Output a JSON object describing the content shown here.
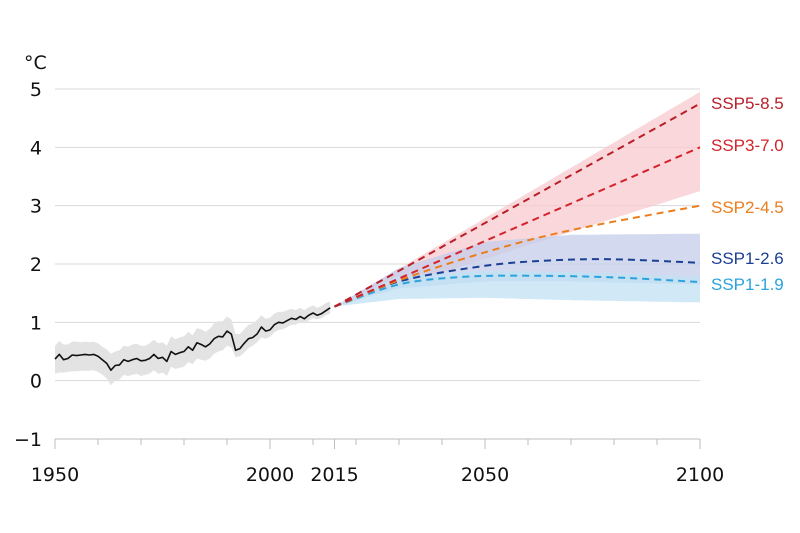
{
  "chart_data": {
    "type": "line",
    "title": "",
    "ylabel": "°C",
    "xlabel": "",
    "xlim": [
      1950,
      2100
    ],
    "ylim": [
      -1,
      5
    ],
    "grid": true,
    "x_ticks": [
      1950,
      2000,
      2015,
      2050,
      2100
    ],
    "x_tick_labels": [
      "1950",
      "2000",
      "2015",
      "2050",
      "2100"
    ],
    "y_ticks": [
      -1,
      0,
      1,
      2,
      3,
      4,
      5
    ],
    "y_tick_labels": [
      "−1",
      "0",
      "1",
      "2",
      "3",
      "4",
      "5"
    ],
    "historical": {
      "x": [
        1950,
        1951,
        1952,
        1953,
        1954,
        1955,
        1956,
        1957,
        1958,
        1959,
        1960,
        1961,
        1962,
        1963,
        1964,
        1965,
        1966,
        1967,
        1968,
        1969,
        1970,
        1971,
        1972,
        1973,
        1974,
        1975,
        1976,
        1977,
        1978,
        1979,
        1980,
        1981,
        1982,
        1983,
        1984,
        1985,
        1986,
        1987,
        1988,
        1989,
        1990,
        1991,
        1992,
        1993,
        1994,
        1995,
        1996,
        1997,
        1998,
        1999,
        2000,
        2001,
        2002,
        2003,
        2004,
        2005,
        2006,
        2007,
        2008,
        2009,
        2010,
        2011,
        2012,
        2013,
        2014
      ],
      "y": [
        0.37,
        0.45,
        0.36,
        0.38,
        0.44,
        0.43,
        0.44,
        0.45,
        0.44,
        0.45,
        0.42,
        0.36,
        0.3,
        0.18,
        0.26,
        0.27,
        0.36,
        0.33,
        0.36,
        0.38,
        0.34,
        0.35,
        0.38,
        0.45,
        0.38,
        0.4,
        0.33,
        0.5,
        0.45,
        0.48,
        0.5,
        0.58,
        0.52,
        0.65,
        0.62,
        0.58,
        0.63,
        0.72,
        0.76,
        0.75,
        0.85,
        0.8,
        0.52,
        0.55,
        0.64,
        0.72,
        0.74,
        0.8,
        0.92,
        0.85,
        0.87,
        0.96,
        1.0,
        0.99,
        1.03,
        1.07,
        1.05,
        1.1,
        1.06,
        1.12,
        1.16,
        1.12,
        1.15,
        1.2,
        1.25
      ],
      "lower": [
        0.12,
        0.14,
        0.14,
        0.15,
        0.16,
        0.16,
        0.17,
        0.17,
        0.17,
        0.18,
        0.15,
        0.1,
        0.04,
        -0.08,
        0.0,
        0.02,
        0.1,
        0.08,
        0.1,
        0.12,
        0.08,
        0.1,
        0.12,
        0.18,
        0.12,
        0.14,
        0.08,
        0.24,
        0.2,
        0.22,
        0.24,
        0.32,
        0.28,
        0.38,
        0.36,
        0.34,
        0.38,
        0.46,
        0.5,
        0.52,
        0.6,
        0.57,
        0.4,
        0.42,
        0.48,
        0.56,
        0.6,
        0.66,
        0.74,
        0.72,
        0.75,
        0.83,
        0.87,
        0.88,
        0.92,
        0.96,
        0.96,
        1.0,
        0.98,
        1.03,
        1.07,
        1.05,
        1.07,
        1.12,
        1.15
      ],
      "upper": [
        0.6,
        0.68,
        0.62,
        0.62,
        0.67,
        0.67,
        0.66,
        0.67,
        0.66,
        0.67,
        0.64,
        0.58,
        0.54,
        0.46,
        0.5,
        0.52,
        0.6,
        0.58,
        0.62,
        0.63,
        0.6,
        0.6,
        0.64,
        0.7,
        0.64,
        0.66,
        0.6,
        0.76,
        0.71,
        0.74,
        0.76,
        0.84,
        0.78,
        0.9,
        0.88,
        0.84,
        0.89,
        0.98,
        1.02,
        1.02,
        1.1,
        1.05,
        0.8,
        0.8,
        0.88,
        0.96,
        0.98,
        1.04,
        1.12,
        1.06,
        1.08,
        1.15,
        1.18,
        1.18,
        1.21,
        1.23,
        1.21,
        1.25,
        1.21,
        1.26,
        1.29,
        1.25,
        1.28,
        1.33,
        1.36
      ]
    },
    "scenario_start": {
      "x": 2015,
      "y": 1.27
    },
    "series": [
      {
        "name": "SSP5-8.5",
        "color": "#b81f28",
        "x": [
          2015,
          2100
        ],
        "y": [
          1.27,
          4.75
        ]
      },
      {
        "name": "SSP3-7.0",
        "color": "#d4232b",
        "x": [
          2015,
          2100
        ],
        "y": [
          1.27,
          4.0
        ]
      },
      {
        "name": "SSP2-4.5",
        "color": "#ec7d1c",
        "x": [
          2015,
          2030,
          2050,
          2070,
          2100
        ],
        "y": [
          1.27,
          1.72,
          2.2,
          2.58,
          3.0
        ]
      },
      {
        "name": "SSP1-2.6",
        "color": "#1b3f94",
        "x": [
          2015,
          2030,
          2050,
          2065,
          2080,
          2100
        ],
        "y": [
          1.27,
          1.7,
          1.97,
          2.06,
          2.08,
          2.02
        ]
      },
      {
        "name": "SSP1-1.9",
        "color": "#2ba3dc",
        "x": [
          2015,
          2030,
          2045,
          2060,
          2080,
          2100
        ],
        "y": [
          1.27,
          1.65,
          1.78,
          1.8,
          1.77,
          1.69
        ]
      }
    ],
    "bands": [
      {
        "color": "#f7cacd",
        "x": [
          2015,
          2100
        ],
        "lower": [
          1.27,
          3.25
        ],
        "upper": [
          1.27,
          4.95
        ]
      },
      {
        "color": "#c4cdeb",
        "x": [
          2015,
          2030,
          2050,
          2070,
          2100
        ],
        "lower": [
          1.27,
          1.58,
          1.7,
          1.7,
          1.65
        ],
        "upper": [
          1.27,
          1.93,
          2.38,
          2.5,
          2.52
        ]
      },
      {
        "color": "#c2e1f4",
        "x": [
          2015,
          2030,
          2050,
          2070,
          2100
        ],
        "lower": [
          1.27,
          1.4,
          1.42,
          1.38,
          1.34
        ],
        "upper": [
          1.27,
          1.8,
          1.88,
          1.86,
          1.78
        ]
      }
    ]
  }
}
